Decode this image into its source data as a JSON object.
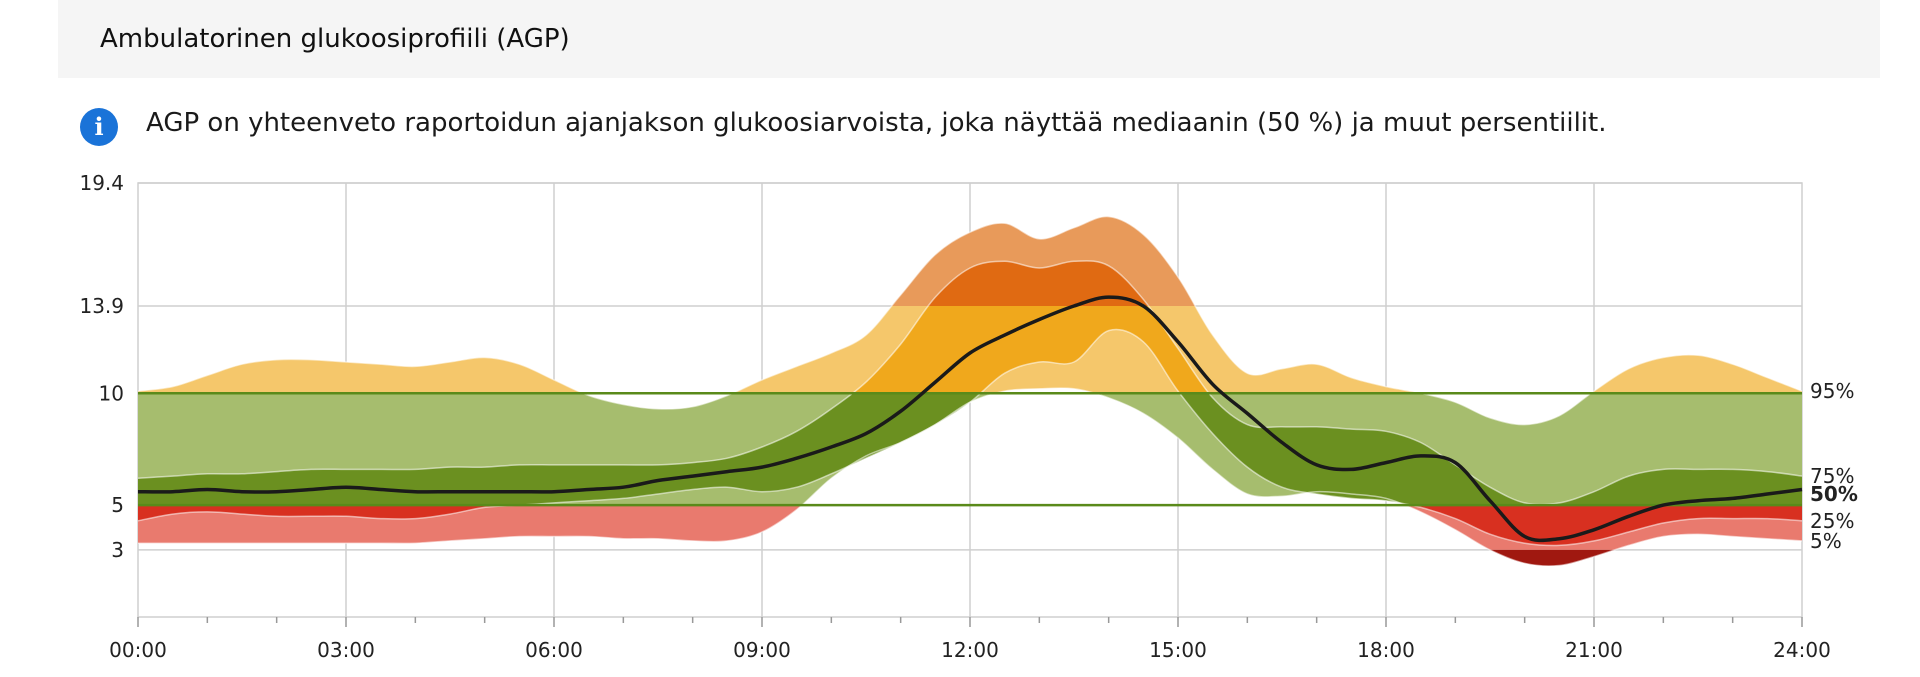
{
  "header": {
    "title": "Ambulatorinen glukoosiprofiili (AGP)"
  },
  "info": {
    "icon": "info-icon",
    "icon_glyph": "i",
    "text": "AGP on yhteenveto raportoidun ajanjakson glukoosiarvoista, joka näyttää mediaanin (50 %) ja muut persentiilit."
  },
  "colors": {
    "very_high": "#e89a5a",
    "very_high_inner": "#e06a12",
    "high": "#f5c76b",
    "high_inner": "#f0a81c",
    "target": "#a6bd6e",
    "target_inner": "#6b9020",
    "low": "#e97a6e",
    "low_inner": "#d83020",
    "very_low": "#a01810",
    "median": "#1a1a1a",
    "target_line": "#5a8a1a",
    "grid": "#cfcfcf"
  },
  "chart_data": {
    "type": "area",
    "x_unit": "hour",
    "xlim": [
      0,
      24
    ],
    "ylim": [
      0,
      19.4
    ],
    "y_ticks": [
      "19.4",
      "13.9",
      "10",
      "5",
      "3"
    ],
    "y_tick_values": [
      19.4,
      13.9,
      10,
      5,
      3
    ],
    "x_ticks": [
      "00:00",
      "03:00",
      "06:00",
      "09:00",
      "12:00",
      "15:00",
      "18:00",
      "21:00",
      "24:00"
    ],
    "x_tick_values": [
      0,
      3,
      6,
      9,
      12,
      15,
      18,
      21,
      24
    ],
    "target_range": [
      5,
      10
    ],
    "grid": true,
    "legend_position": "right",
    "x": [
      0,
      0.5,
      1,
      1.5,
      2,
      2.5,
      3,
      3.5,
      4,
      4.5,
      5,
      5.5,
      6,
      6.5,
      7,
      7.5,
      8,
      8.5,
      9,
      9.5,
      10,
      10.5,
      11,
      11.5,
      12,
      12.5,
      13,
      13.5,
      14,
      14.5,
      15,
      15.5,
      16,
      16.5,
      17,
      17.5,
      18,
      18.5,
      19,
      19.5,
      20,
      20.5,
      21,
      21.5,
      22,
      22.5,
      23,
      23.5,
      24
    ],
    "series": [
      {
        "name": "95%",
        "values": [
          10.1,
          10.3,
          10.8,
          11.3,
          11.5,
          11.5,
          11.4,
          11.3,
          11.2,
          11.4,
          11.6,
          11.3,
          10.6,
          9.9,
          9.5,
          9.3,
          9.4,
          9.9,
          10.6,
          11.2,
          11.8,
          12.6,
          14.4,
          16.2,
          17.2,
          17.6,
          16.9,
          17.4,
          17.9,
          17.1,
          15.2,
          12.6,
          10.9,
          11.1,
          11.3,
          10.7,
          10.3,
          10.0,
          9.6,
          8.9,
          8.6,
          9.0,
          10.1,
          11.1,
          11.6,
          11.7,
          11.3,
          10.7,
          10.1
        ]
      },
      {
        "name": "75%",
        "values": [
          6.2,
          6.3,
          6.4,
          6.4,
          6.5,
          6.6,
          6.6,
          6.6,
          6.6,
          6.7,
          6.7,
          6.8,
          6.8,
          6.8,
          6.8,
          6.8,
          6.9,
          7.1,
          7.6,
          8.3,
          9.3,
          10.5,
          12.2,
          14.3,
          15.6,
          15.9,
          15.6,
          15.9,
          15.7,
          14.2,
          12.0,
          9.8,
          8.6,
          8.5,
          8.5,
          8.4,
          8.3,
          7.8,
          6.8,
          5.8,
          5.1,
          5.1,
          5.6,
          6.3,
          6.6,
          6.6,
          6.6,
          6.5,
          6.3
        ]
      },
      {
        "name": "50%",
        "values": [
          5.6,
          5.6,
          5.7,
          5.6,
          5.6,
          5.7,
          5.8,
          5.7,
          5.6,
          5.6,
          5.6,
          5.6,
          5.6,
          5.7,
          5.8,
          6.1,
          6.3,
          6.5,
          6.7,
          7.1,
          7.6,
          8.2,
          9.2,
          10.5,
          11.8,
          12.6,
          13.3,
          13.9,
          14.3,
          13.9,
          12.3,
          10.4,
          9.1,
          7.8,
          6.8,
          6.6,
          6.9,
          7.2,
          6.9,
          5.2,
          3.6,
          3.5,
          3.9,
          4.5,
          5.0,
          5.2,
          5.3,
          5.5,
          5.7
        ]
      },
      {
        "name": "25%",
        "values": [
          4.3,
          4.6,
          4.7,
          4.6,
          4.5,
          4.5,
          4.5,
          4.4,
          4.4,
          4.6,
          4.9,
          5.0,
          5.1,
          5.2,
          5.3,
          5.5,
          5.7,
          5.8,
          5.6,
          5.8,
          6.4,
          7.1,
          7.8,
          8.6,
          9.6,
          10.9,
          11.4,
          11.4,
          12.8,
          12.3,
          10.1,
          8.2,
          6.7,
          5.8,
          5.5,
          5.3,
          5.2,
          4.9,
          4.4,
          3.7,
          3.3,
          3.2,
          3.4,
          3.8,
          4.2,
          4.4,
          4.4,
          4.4,
          4.3
        ]
      },
      {
        "name": "5%",
        "values": [
          3.3,
          3.3,
          3.3,
          3.3,
          3.3,
          3.3,
          3.3,
          3.3,
          3.3,
          3.4,
          3.5,
          3.6,
          3.6,
          3.6,
          3.5,
          3.5,
          3.4,
          3.4,
          3.8,
          4.8,
          6.2,
          7.2,
          7.8,
          8.6,
          9.6,
          10.1,
          10.2,
          10.2,
          9.8,
          9.1,
          8.0,
          6.6,
          5.5,
          5.4,
          5.6,
          5.5,
          5.3,
          4.7,
          3.9,
          3.0,
          2.4,
          2.3,
          2.7,
          3.2,
          3.6,
          3.7,
          3.6,
          3.5,
          3.4
        ]
      }
    ]
  }
}
